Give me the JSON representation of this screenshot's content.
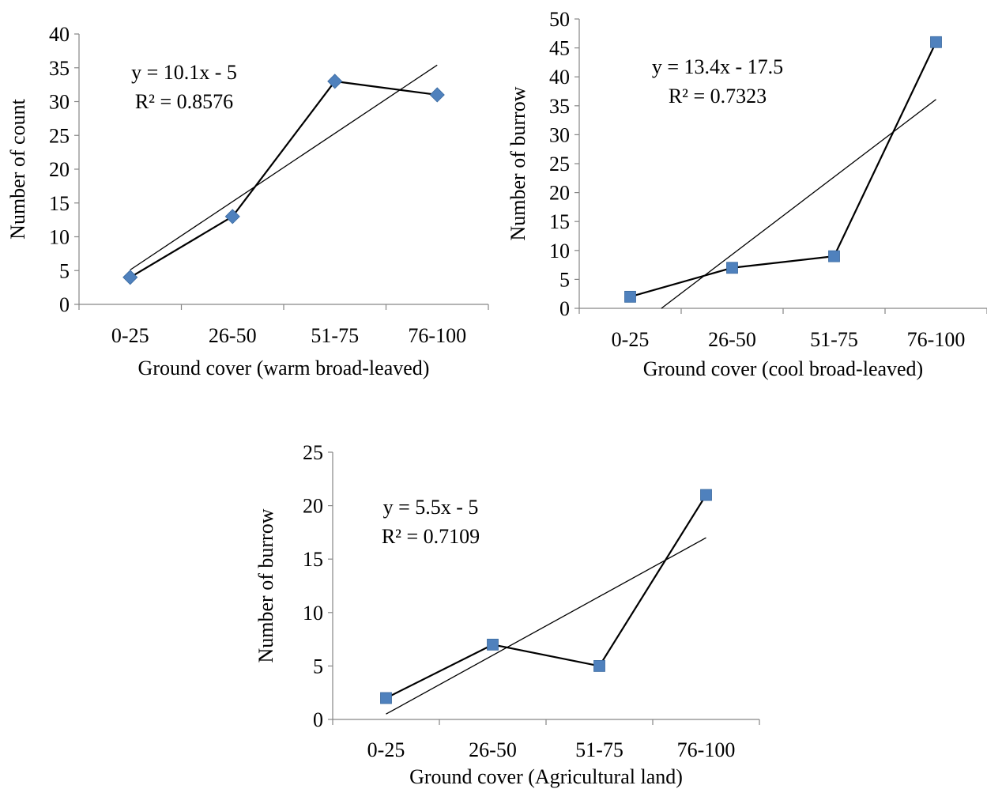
{
  "chart_data": [
    {
      "type": "line",
      "categories": [
        "0-25",
        "26-50",
        "51-75",
        "76-100"
      ],
      "series": [
        {
          "values": [
            4,
            13,
            33,
            31
          ],
          "marker": "diamond"
        }
      ],
      "trendline": {
        "slope": 10.1,
        "intercept": -5
      },
      "equation": "y = 10.1x - 5",
      "r_squared": "R² = 0.8576",
      "xlabel": "Ground cover (warm broad-leaved)",
      "ylabel": "Number of count",
      "ylim": [
        0,
        40
      ],
      "ytick_step": 5,
      "grid": false,
      "legend": "none"
    },
    {
      "type": "line",
      "categories": [
        "0-25",
        "26-50",
        "51-75",
        "76-100"
      ],
      "series": [
        {
          "values": [
            2,
            7,
            9,
            46
          ],
          "marker": "square"
        }
      ],
      "trendline": {
        "slope": 13.4,
        "intercept": -17.5
      },
      "equation": "y = 13.4x - 17.5",
      "r_squared": "R² = 0.7323",
      "xlabel": "Ground cover (cool broad-leaved)",
      "ylabel": "Number of burrow",
      "ylim": [
        0,
        50
      ],
      "ytick_step": 5,
      "grid": false,
      "legend": "none"
    },
    {
      "type": "line",
      "categories": [
        "0-25",
        "26-50",
        "51-75",
        "76-100"
      ],
      "series": [
        {
          "values": [
            2,
            7,
            5,
            21
          ],
          "marker": "square"
        }
      ],
      "trendline": {
        "slope": 5.5,
        "intercept": -5
      },
      "equation": "y = 5.5x - 5",
      "r_squared": "R² = 0.7109",
      "xlabel": "Ground cover (Agricultural land)",
      "ylabel": "Number of burrow",
      "ylim": [
        0,
        25
      ],
      "ytick_step": 5,
      "grid": false,
      "legend": "none"
    }
  ],
  "colors": {
    "marker": "#4f81bd",
    "line": "#000000",
    "axis": "#868686"
  }
}
